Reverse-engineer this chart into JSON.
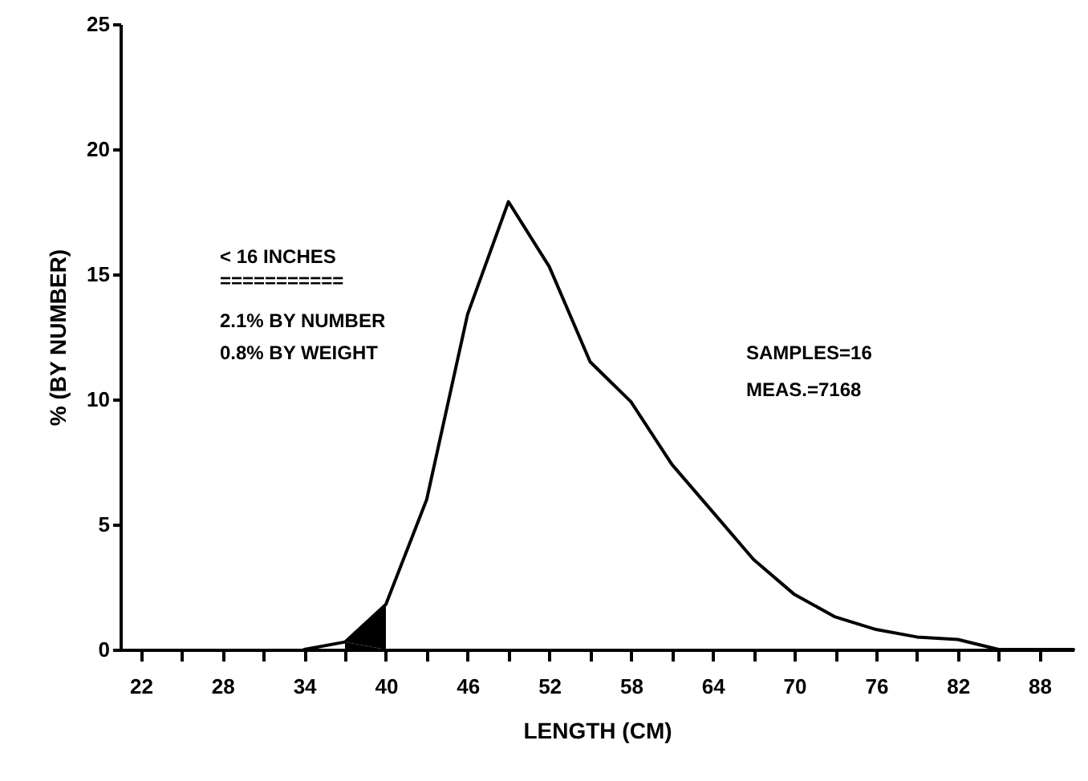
{
  "chart_data": {
    "type": "line",
    "xlabel": "LENGTH (CM)",
    "ylabel": "% (BY NUMBER)",
    "annotations": [
      "< 16 INCHES",
      "===========",
      "2.1% BY NUMBER",
      "0.8% BY WEIGHT",
      "SAMPLES=16",
      "MEAS.=7168"
    ],
    "series": [
      {
        "color": "#000000",
        "x": [
          34,
          37,
          40,
          43,
          46,
          49,
          52,
          55,
          58,
          61,
          64,
          67,
          70,
          73,
          76,
          79,
          82,
          85,
          88,
          90.5
        ],
        "values": [
          0,
          0.3,
          1.8,
          6.0,
          13.4,
          17.9,
          15.3,
          11.5,
          9.9,
          7.4,
          5.5,
          3.6,
          2.2,
          1.3,
          0.8,
          0.5,
          0.4,
          0,
          0,
          0
        ]
      },
      {
        "type": "area",
        "color": "#000000",
        "x": [
          37,
          40
        ],
        "values": [
          0.3,
          1.8
        ]
      }
    ],
    "xlim": [
      20.5,
      90.5
    ],
    "ylim": [
      0,
      25
    ],
    "xticks": [
      22,
      {
        "value": 25,
        "label": null
      },
      28,
      {
        "value": 31,
        "label": null
      },
      34,
      {
        "value": 37,
        "label": null
      },
      40,
      {
        "value": 43,
        "label": null
      },
      46,
      {
        "value": 49,
        "label": null
      },
      52,
      {
        "value": 55,
        "label": null
      },
      58,
      {
        "value": 61,
        "label": null
      },
      64,
      {
        "value": 67,
        "label": null
      },
      70,
      {
        "value": 73,
        "label": null
      },
      76,
      {
        "value": 79,
        "label": null
      },
      82,
      {
        "value": 85,
        "label": null
      },
      88
    ],
    "yticks": [
      0,
      5,
      10,
      15,
      20,
      25
    ]
  }
}
